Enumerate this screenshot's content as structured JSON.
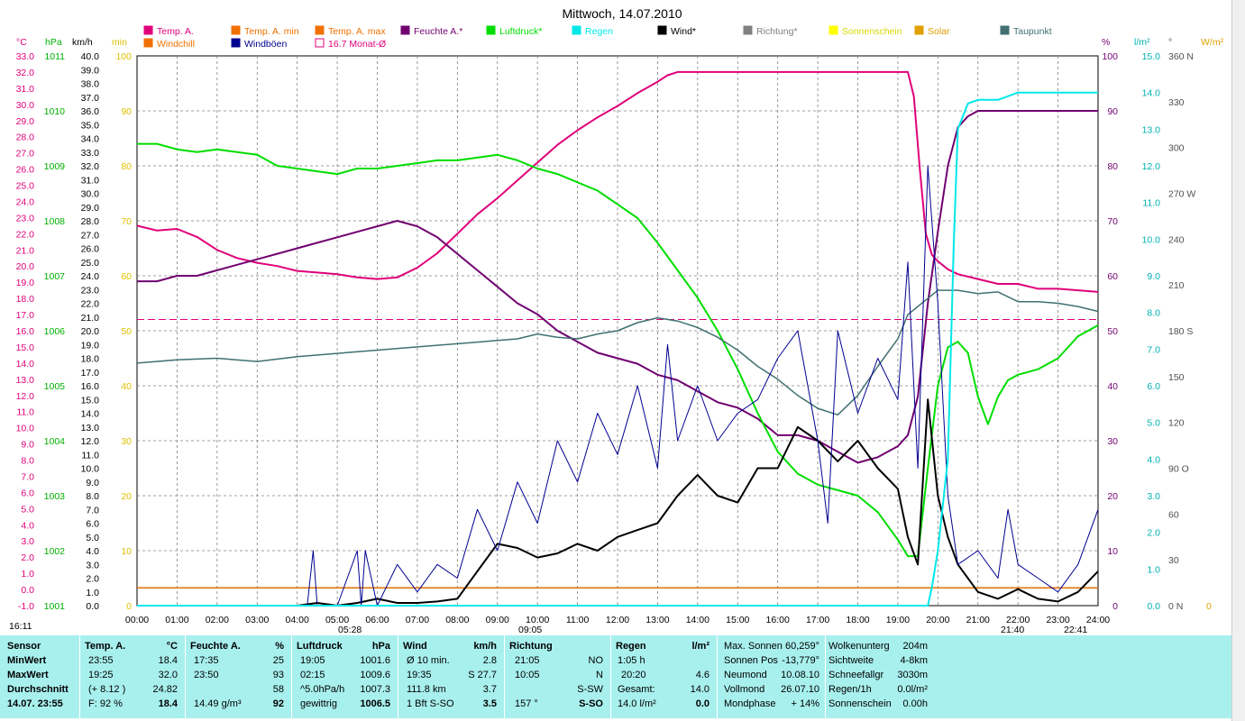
{
  "title": "Mittwoch, 14.07.2010",
  "legend": [
    {
      "label": "Temp. A.",
      "color": "#e0007a"
    },
    {
      "label": "Windchill",
      "color": "#f07000"
    },
    {
      "label": "Temp. A. min",
      "color": "#f07000"
    },
    {
      "label": "Windböen",
      "color": "#000090"
    },
    {
      "label": "Temp. A. max",
      "color": "#f07000"
    },
    {
      "label": "16.7 Monat-Ø",
      "color": "#e0007a"
    },
    {
      "label": "Feuchte A.*",
      "color": "#700070"
    },
    {
      "label": "Luftdruck*",
      "color": "#00dd00"
    },
    {
      "label": "Regen",
      "color": "#00e8e8"
    },
    {
      "label": "Wind*",
      "color": "#000000"
    },
    {
      "label": "Richtung*",
      "color": "#808080"
    },
    {
      "label": "Sonnenschein",
      "color": "#ffff00"
    },
    {
      "label": "Solar",
      "color": "#e0a000"
    },
    {
      "label": "Taupunkt",
      "color": "#407070"
    }
  ],
  "axis_units": {
    "temp": "°C",
    "pressure": "hPa",
    "wind": "km/h",
    "sun": "min",
    "humidity": "%",
    "rain": "l/m²",
    "dir": "°",
    "solar": "W/m²"
  },
  "axis_ticks": {
    "temp": [
      "33.0",
      "32.0",
      "31.0",
      "30.0",
      "29.0",
      "28.0",
      "27.0",
      "26.0",
      "25.0",
      "24.0",
      "23.0",
      "22.0",
      "21.0",
      "20.0",
      "19.0",
      "18.0",
      "17.0",
      "16.0",
      "15.0",
      "14.0",
      "13.0",
      "12.0",
      "11.0",
      "10.0",
      "9.0",
      "8.0",
      "7.0",
      "6.0",
      "5.0",
      "4.0",
      "3.0",
      "2.0",
      "1.0",
      "0.0",
      "-1.0"
    ],
    "pressure": [
      "1011",
      "1010",
      "1009",
      "1008",
      "1007",
      "1006",
      "1005",
      "1004",
      "1003",
      "1002",
      "1001"
    ],
    "wind": [
      "40.0",
      "39.0",
      "38.0",
      "37.0",
      "36.0",
      "35.0",
      "34.0",
      "33.0",
      "32.0",
      "31.0",
      "30.0",
      "29.0",
      "28.0",
      "27.0",
      "26.0",
      "25.0",
      "24.0",
      "23.0",
      "22.0",
      "21.0",
      "20.0",
      "19.0",
      "18.0",
      "17.0",
      "16.0",
      "15.0",
      "14.0",
      "13.0",
      "12.0",
      "11.0",
      "10.0",
      "9.0",
      "8.0",
      "7.0",
      "6.0",
      "5.0",
      "4.0",
      "3.0",
      "2.0",
      "1.0",
      "0.0"
    ],
    "sun": [
      "100",
      "90",
      "80",
      "70",
      "60",
      "50",
      "40",
      "30",
      "20",
      "10",
      "0"
    ],
    "humidity": [
      "100",
      "90",
      "80",
      "70",
      "60",
      "50",
      "40",
      "30",
      "20",
      "10",
      "0"
    ],
    "rain": [
      "15.0",
      "14.0",
      "13.0",
      "12.0",
      "11.0",
      "10.0",
      "9.0",
      "8.0",
      "7.0",
      "6.0",
      "5.0",
      "4.0",
      "3.0",
      "2.0",
      "1.0",
      "0.0"
    ],
    "dir": [
      "360 N",
      "330",
      "300",
      "270 W",
      "240",
      "210",
      "180 S",
      "150",
      "120",
      "90  O",
      "60",
      "30",
      "0  N"
    ],
    "solar": [
      "0"
    ]
  },
  "x_ticks": [
    "00:00",
    "01:00",
    "02:00",
    "03:00",
    "04:00",
    "05:00",
    "06:00",
    "07:00",
    "08:00",
    "09:00",
    "10:00",
    "11:00",
    "12:00",
    "13:00",
    "14:00",
    "15:00",
    "16:00",
    "17:00",
    "18:00",
    "19:00",
    "20:00",
    "21:00",
    "22:00",
    "23:00",
    "24:00"
  ],
  "time_markers": [
    "16:11",
    "05:28",
    "09:05",
    "21:40",
    "22:41"
  ],
  "chart_data": {
    "type": "line",
    "x_range_hours": [
      0,
      24
    ],
    "axes": {
      "temp_C": [
        -1,
        33
      ],
      "pressure_hPa": [
        1001,
        1011
      ],
      "wind_kmh": [
        0,
        40
      ],
      "humidity_pct": [
        0,
        100
      ],
      "rain_lm2": [
        0,
        15
      ]
    },
    "monthly_avg_temp": 16.7,
    "series": [
      {
        "name": "Temp. A.",
        "axis": "temp",
        "color": "#e0007a",
        "x": [
          0,
          0.5,
          1,
          1.5,
          2,
          2.5,
          3,
          3.5,
          4,
          4.5,
          5,
          5.5,
          6,
          6.5,
          7,
          7.5,
          8,
          8.5,
          9,
          9.5,
          10,
          10.5,
          11,
          11.5,
          12,
          12.5,
          13,
          13.25,
          13.5,
          14,
          15,
          16,
          17,
          18,
          19,
          19.25,
          19.4,
          19.55,
          19.7,
          19.85,
          20,
          20.25,
          20.5,
          21,
          21.5,
          22,
          22.5,
          23,
          23.5,
          24
        ],
        "y": [
          22.5,
          22.2,
          22.3,
          21.8,
          21.0,
          20.5,
          20.2,
          20.0,
          19.7,
          19.6,
          19.5,
          19.3,
          19.2,
          19.3,
          19.9,
          20.8,
          22.0,
          23.2,
          24.2,
          25.3,
          26.4,
          27.5,
          28.4,
          29.2,
          29.9,
          30.7,
          31.4,
          31.8,
          32.0,
          32.0,
          32.0,
          32.0,
          32.0,
          32.0,
          32.0,
          32.0,
          30.5,
          26.0,
          22.0,
          20.7,
          20.3,
          19.8,
          19.5,
          19.2,
          18.9,
          18.9,
          18.6,
          18.6,
          18.5,
          18.4
        ]
      },
      {
        "name": "Feuchte A.*",
        "axis": "humidity",
        "color": "#700070",
        "x": [
          0,
          0.5,
          1,
          1.5,
          2,
          2.5,
          3,
          3.5,
          4,
          4.5,
          5,
          5.5,
          6,
          6.5,
          7,
          7.5,
          8,
          8.5,
          9,
          9.5,
          10,
          10.5,
          11,
          11.5,
          12,
          12.5,
          13,
          13.5,
          14,
          14.5,
          15,
          15.5,
          16,
          16.5,
          17,
          17.5,
          18,
          18.5,
          19,
          19.25,
          19.5,
          19.75,
          20,
          20.25,
          20.5,
          20.75,
          21,
          21.5,
          22,
          22.5,
          23,
          23.5,
          24
        ],
        "y": [
          59,
          59,
          60,
          60,
          61,
          62,
          63,
          64,
          65,
          66,
          67,
          68,
          69,
          70,
          69,
          67,
          64,
          61,
          58,
          55,
          53,
          50,
          48,
          46,
          45,
          44,
          42,
          41,
          39,
          37,
          36,
          34,
          31,
          31,
          30,
          28,
          26,
          27,
          29,
          31,
          38,
          55,
          68,
          80,
          87,
          89,
          90,
          90,
          90,
          90,
          90,
          90,
          90
        ]
      },
      {
        "name": "Luftdruck*",
        "axis": "pressure",
        "color": "#00dd00",
        "x": [
          0,
          0.5,
          1,
          1.5,
          2,
          2.5,
          3,
          3.5,
          4,
          4.5,
          5,
          5.5,
          6,
          6.5,
          7,
          7.5,
          8,
          8.5,
          9,
          9.5,
          10,
          10.5,
          11,
          11.5,
          12,
          12.5,
          13,
          13.5,
          14,
          14.5,
          15,
          15.5,
          16,
          16.5,
          17,
          17.5,
          18,
          18.5,
          19,
          19.25,
          19.5,
          19.75,
          20,
          20.25,
          20.5,
          20.75,
          21,
          21.25,
          21.5,
          21.75,
          22,
          22.5,
          23,
          23.5,
          24
        ],
        "y": [
          1009.4,
          1009.4,
          1009.3,
          1009.25,
          1009.3,
          1009.25,
          1009.2,
          1009.0,
          1008.95,
          1008.9,
          1008.85,
          1008.95,
          1008.95,
          1009.0,
          1009.05,
          1009.1,
          1009.1,
          1009.15,
          1009.2,
          1009.1,
          1008.95,
          1008.85,
          1008.7,
          1008.55,
          1008.3,
          1008.05,
          1007.6,
          1007.1,
          1006.6,
          1006.0,
          1005.3,
          1004.5,
          1003.8,
          1003.4,
          1003.2,
          1003.1,
          1003.0,
          1002.7,
          1002.2,
          1001.9,
          1001.9,
          1003.5,
          1005.0,
          1005.7,
          1005.8,
          1005.6,
          1004.8,
          1004.3,
          1004.8,
          1005.1,
          1005.2,
          1005.3,
          1005.5,
          1005.9,
          1006.1
        ]
      },
      {
        "name": "Taupunkt",
        "axis": "temp",
        "color": "#407070",
        "x": [
          0,
          1,
          2,
          3,
          4,
          5,
          6,
          7,
          8,
          8.5,
          9,
          9.5,
          10,
          10.5,
          11,
          11.5,
          12,
          12.5,
          13,
          13.5,
          14,
          14.5,
          15,
          15.5,
          16,
          16.5,
          17,
          17.5,
          18,
          18.5,
          19,
          19.25,
          19.5,
          19.75,
          20,
          20.5,
          21,
          21.5,
          22,
          22.5,
          23,
          23.5,
          24
        ],
        "y": [
          14.0,
          14.2,
          14.3,
          14.1,
          14.4,
          14.6,
          14.8,
          15.0,
          15.2,
          15.3,
          15.4,
          15.5,
          15.8,
          15.6,
          15.5,
          15.8,
          16.0,
          16.5,
          16.8,
          16.6,
          16.2,
          15.6,
          14.8,
          13.8,
          13.0,
          12.0,
          11.2,
          10.8,
          12.0,
          13.8,
          15.5,
          17.0,
          17.5,
          18.0,
          18.5,
          18.5,
          18.3,
          18.4,
          17.8,
          17.8,
          17.7,
          17.5,
          17.2
        ]
      },
      {
        "name": "Wind*",
        "axis": "wind",
        "color": "#000000",
        "x": [
          0,
          4,
          4.5,
          5,
          5.5,
          6,
          6.5,
          7,
          7.5,
          8,
          8.5,
          9,
          9.5,
          10,
          10.5,
          11,
          11.5,
          12,
          12.5,
          13,
          13.5,
          14,
          14.5,
          15,
          15.5,
          16,
          16.5,
          17,
          17.5,
          18,
          18.5,
          19,
          19.25,
          19.5,
          19.75,
          20,
          20.25,
          20.5,
          21,
          21.5,
          22,
          22.5,
          23,
          23.5,
          24
        ],
        "y": [
          0,
          0,
          0.2,
          0,
          0.2,
          0.5,
          0.2,
          0.2,
          0.3,
          0.5,
          2.5,
          4.5,
          4.2,
          3.5,
          3.8,
          4.5,
          4.0,
          5.0,
          5.5,
          6.0,
          8.0,
          9.5,
          8.0,
          7.5,
          10.0,
          10.0,
          13.0,
          12.0,
          10.5,
          12.0,
          10.0,
          8.5,
          5.0,
          3.0,
          15.0,
          8.0,
          5.0,
          3.0,
          1.0,
          0.5,
          1.2,
          0.5,
          0.3,
          1.0,
          2.5
        ]
      },
      {
        "name": "Windböen",
        "axis": "wind",
        "color": "#000090",
        "x": [
          0,
          4.25,
          4.4,
          4.5,
          5.0,
          5.5,
          5.6,
          5.7,
          6.0,
          6.5,
          7.0,
          7.5,
          8.0,
          8.5,
          9.0,
          9.5,
          10.0,
          10.5,
          11.0,
          11.5,
          12.0,
          12.5,
          13.0,
          13.25,
          13.5,
          14.0,
          14.5,
          15.0,
          15.5,
          16.0,
          16.5,
          17.0,
          17.25,
          17.5,
          18.0,
          18.5,
          19.0,
          19.25,
          19.5,
          19.75,
          20.0,
          20.25,
          20.5,
          21.0,
          21.5,
          21.75,
          22.0,
          22.5,
          23.0,
          23.5,
          24.0
        ],
        "y": [
          0,
          0,
          4.0,
          0,
          0,
          4.0,
          0,
          4.0,
          0,
          3.0,
          1.0,
          3.0,
          2.0,
          7.0,
          4.0,
          9.0,
          6.0,
          12.0,
          9.0,
          14.0,
          11.0,
          16.0,
          10.0,
          19.0,
          12.0,
          16.0,
          12.0,
          14.0,
          15.0,
          18.0,
          20.0,
          12.0,
          6.0,
          20.0,
          14.0,
          18.0,
          15.0,
          25.0,
          10.0,
          32.0,
          22.0,
          8.0,
          3.0,
          4.0,
          2.0,
          7.0,
          3.0,
          2.0,
          1.0,
          3.0,
          7.0
        ]
      },
      {
        "name": "Regen",
        "axis": "rain",
        "color": "#00e8e8",
        "x": [
          0,
          19.75,
          19.85,
          20.0,
          20.25,
          20.4,
          20.5,
          20.75,
          21.0,
          21.5,
          22.0,
          22.5,
          23.0,
          24.0
        ],
        "y": [
          0,
          0,
          0.5,
          1.5,
          4.0,
          10.0,
          13.0,
          13.7,
          13.8,
          13.8,
          14.0,
          14.0,
          14.0,
          14.0
        ]
      }
    ]
  },
  "bottom": {
    "sensor": {
      "header": "Sensor",
      "rows": [
        "MinWert",
        "MaxWert",
        "Durchschnitt",
        "14.07. 23:55"
      ]
    },
    "temp": {
      "header": "Temp. A.",
      "unit": "°C",
      "rows": [
        [
          "23:55",
          "18.4"
        ],
        [
          "19:25",
          "32.0"
        ],
        [
          "(+ 8.12 )",
          "24.82"
        ],
        [
          "F: 92 %",
          "18.4"
        ]
      ]
    },
    "humidity": {
      "header": "Feuchte A.",
      "unit": "%",
      "rows": [
        [
          "17:35",
          "25"
        ],
        [
          "23:50",
          "93"
        ],
        [
          "",
          "58"
        ],
        [
          "14.49 g/m³",
          "92"
        ]
      ]
    },
    "pressure": {
      "header": "Luftdruck",
      "unit": "hPa",
      "rows": [
        [
          "19:05",
          "1001.6"
        ],
        [
          "02:15",
          "1009.6"
        ],
        [
          "^5.0hPa/h",
          "1007.3"
        ],
        [
          "gewittrig",
          "1006.5"
        ]
      ]
    },
    "wind": {
      "header": "Wind",
      "unit": "km/h",
      "rows": [
        [
          "Ø 10 min.",
          "2.8"
        ],
        [
          "19:35",
          "S 27.7"
        ],
        [
          "111.8 km",
          "3.7"
        ],
        [
          "1 Bft S-SO",
          "3.5"
        ]
      ]
    },
    "direction": {
      "header": "Richtung",
      "rows": [
        [
          "21:05",
          "NO"
        ],
        [
          "10:05",
          "N"
        ],
        [
          "",
          "S-SW"
        ],
        [
          "157 °",
          "S-SO"
        ]
      ]
    },
    "rain": {
      "header": "Regen",
      "unit": "l/m²",
      "rows": [
        [
          "1:05 h",
          ""
        ],
        [
          "20:20",
          "4.6"
        ],
        [
          "Gesamt:",
          "14.0"
        ],
        [
          "14.0 l/m²",
          "0.0"
        ]
      ]
    },
    "astro": [
      [
        "Max. Sonnen",
        "60,259°"
      ],
      [
        "Sonnen Pos",
        "-13,779°"
      ],
      [
        "Neumond",
        "10.08.10"
      ],
      [
        "Vollmond",
        "26.07.10"
      ],
      [
        "Mondphase",
        "+ 14%"
      ]
    ],
    "misc": [
      [
        "Wolkenunterg",
        "204m"
      ],
      [
        "Sichtweite",
        "4-8km"
      ],
      [
        "Schneefallgr",
        "3030m"
      ],
      [
        "Regen/1h",
        "0.0l/m²"
      ],
      [
        "Sonnenschein",
        "0.00h"
      ]
    ]
  }
}
